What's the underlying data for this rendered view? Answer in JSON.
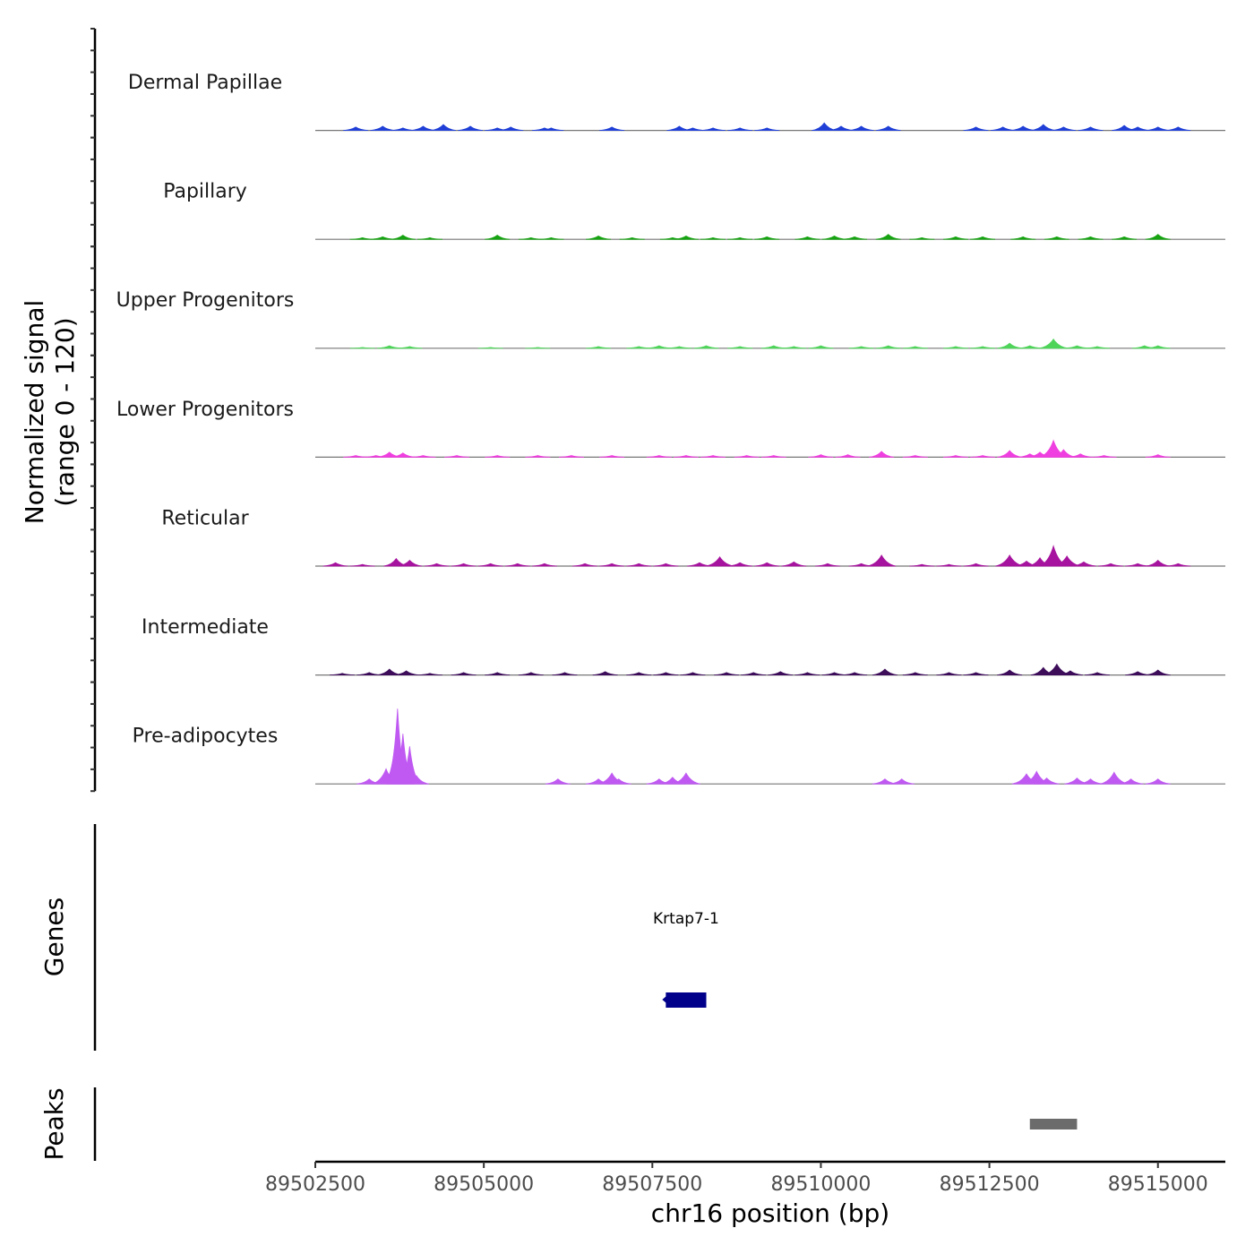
{
  "chart_data": {
    "type": "area",
    "chromosome": "chr16",
    "xlabel": "chr16 position (bp)",
    "xlim": [
      89502500,
      89516000
    ],
    "x_ticks": [
      89502500,
      89505000,
      89507500,
      89510000,
      89512500,
      89515000
    ],
    "x_tick_labels": [
      "89502500",
      "89505000",
      "89507500",
      "89510000",
      "89512500",
      "89515000"
    ],
    "signal_ylabel": "Normalized signal\n(range 0 - 120)",
    "signal_ylabel_lines": [
      "Normalized signal",
      "(range 0 - 120)"
    ],
    "ylim": [
      0,
      120
    ],
    "tracks": [
      {
        "name": "Dermal Papillae",
        "color": "#1f3fd6",
        "peaks": [
          [
            89503100,
            4
          ],
          [
            89503500,
            5
          ],
          [
            89503800,
            3
          ],
          [
            89504100,
            5
          ],
          [
            89504400,
            7
          ],
          [
            89504800,
            5
          ],
          [
            89505200,
            3
          ],
          [
            89505400,
            4
          ],
          [
            89505900,
            3
          ],
          [
            89506000,
            3
          ],
          [
            89506900,
            4
          ],
          [
            89507900,
            5
          ],
          [
            89508100,
            3
          ],
          [
            89508400,
            3
          ],
          [
            89508800,
            3
          ],
          [
            89509200,
            3
          ],
          [
            89510050,
            9
          ],
          [
            89510300,
            5
          ],
          [
            89510600,
            5
          ],
          [
            89511000,
            5
          ],
          [
            89512300,
            4
          ],
          [
            89512700,
            4
          ],
          [
            89513000,
            5
          ],
          [
            89513300,
            7
          ],
          [
            89513600,
            4
          ],
          [
            89514000,
            4
          ],
          [
            89514500,
            6
          ],
          [
            89514700,
            4
          ],
          [
            89515000,
            4
          ],
          [
            89515300,
            4
          ]
        ]
      },
      {
        "name": "Papillary",
        "color": "#17a312",
        "peaks": [
          [
            89503200,
            2
          ],
          [
            89503500,
            3
          ],
          [
            89503800,
            5
          ],
          [
            89504200,
            2
          ],
          [
            89505200,
            5
          ],
          [
            89505700,
            2
          ],
          [
            89506000,
            2
          ],
          [
            89506700,
            4
          ],
          [
            89507200,
            2
          ],
          [
            89507800,
            2
          ],
          [
            89508000,
            4
          ],
          [
            89508400,
            2
          ],
          [
            89508800,
            2
          ],
          [
            89509200,
            3
          ],
          [
            89509800,
            3
          ],
          [
            89510200,
            4
          ],
          [
            89510500,
            3
          ],
          [
            89511000,
            6
          ],
          [
            89511500,
            2
          ],
          [
            89512000,
            3
          ],
          [
            89512400,
            3
          ],
          [
            89513000,
            3
          ],
          [
            89513500,
            3
          ],
          [
            89514000,
            3
          ],
          [
            89514500,
            3
          ],
          [
            89515000,
            6
          ]
        ]
      },
      {
        "name": "Upper Progenitors",
        "color": "#4fd45a",
        "peaks": [
          [
            89503200,
            1
          ],
          [
            89503600,
            3
          ],
          [
            89503900,
            2
          ],
          [
            89505100,
            1
          ],
          [
            89505800,
            1
          ],
          [
            89506700,
            2
          ],
          [
            89507300,
            2
          ],
          [
            89507600,
            3
          ],
          [
            89507900,
            2
          ],
          [
            89508300,
            3
          ],
          [
            89508800,
            2
          ],
          [
            89509300,
            3
          ],
          [
            89509600,
            2
          ],
          [
            89510000,
            3
          ],
          [
            89510600,
            2
          ],
          [
            89511000,
            3
          ],
          [
            89511400,
            2
          ],
          [
            89512000,
            2
          ],
          [
            89512400,
            2
          ],
          [
            89512800,
            6
          ],
          [
            89513100,
            3
          ],
          [
            89513450,
            11
          ],
          [
            89513800,
            3
          ],
          [
            89514100,
            2
          ],
          [
            89514800,
            3
          ],
          [
            89515000,
            3
          ]
        ]
      },
      {
        "name": "Lower Progenitors",
        "color": "#f03fe0",
        "peaks": [
          [
            89503100,
            2
          ],
          [
            89503400,
            2
          ],
          [
            89503600,
            6
          ],
          [
            89503800,
            5
          ],
          [
            89504100,
            2
          ],
          [
            89504600,
            2
          ],
          [
            89505200,
            2
          ],
          [
            89505800,
            2
          ],
          [
            89506300,
            2
          ],
          [
            89506900,
            2
          ],
          [
            89507600,
            2
          ],
          [
            89508000,
            2
          ],
          [
            89508400,
            2
          ],
          [
            89508900,
            2
          ],
          [
            89509300,
            2
          ],
          [
            89510000,
            3
          ],
          [
            89510400,
            3
          ],
          [
            89510900,
            7
          ],
          [
            89511400,
            2
          ],
          [
            89512000,
            2
          ],
          [
            89512400,
            2
          ],
          [
            89512800,
            8
          ],
          [
            89513100,
            4
          ],
          [
            89513250,
            6
          ],
          [
            89513450,
            20
          ],
          [
            89513600,
            9
          ],
          [
            89513850,
            4
          ],
          [
            89514200,
            2
          ],
          [
            89515000,
            3
          ]
        ]
      },
      {
        "name": "Reticular",
        "color": "#a6139e",
        "peaks": [
          [
            89502800,
            4
          ],
          [
            89503200,
            2
          ],
          [
            89503700,
            9
          ],
          [
            89503900,
            7
          ],
          [
            89504300,
            3
          ],
          [
            89504700,
            3
          ],
          [
            89505100,
            3
          ],
          [
            89505500,
            3
          ],
          [
            89505900,
            3
          ],
          [
            89506500,
            3
          ],
          [
            89506900,
            3
          ],
          [
            89507300,
            3
          ],
          [
            89507700,
            3
          ],
          [
            89508200,
            4
          ],
          [
            89508500,
            11
          ],
          [
            89508800,
            4
          ],
          [
            89509200,
            4
          ],
          [
            89509600,
            5
          ],
          [
            89510100,
            3
          ],
          [
            89510600,
            3
          ],
          [
            89510900,
            13
          ],
          [
            89511500,
            2
          ],
          [
            89511900,
            2
          ],
          [
            89512300,
            3
          ],
          [
            89512800,
            13
          ],
          [
            89513050,
            6
          ],
          [
            89513250,
            10
          ],
          [
            89513450,
            24
          ],
          [
            89513650,
            12
          ],
          [
            89513900,
            5
          ],
          [
            89514300,
            3
          ],
          [
            89514700,
            3
          ],
          [
            89515000,
            7
          ],
          [
            89515300,
            3
          ]
        ]
      },
      {
        "name": "Intermediate",
        "color": "#3d0d5a",
        "peaks": [
          [
            89502900,
            2
          ],
          [
            89503300,
            3
          ],
          [
            89503600,
            7
          ],
          [
            89503850,
            5
          ],
          [
            89504200,
            2
          ],
          [
            89504700,
            3
          ],
          [
            89505200,
            3
          ],
          [
            89505700,
            3
          ],
          [
            89506200,
            3
          ],
          [
            89506800,
            4
          ],
          [
            89507300,
            3
          ],
          [
            89507700,
            3
          ],
          [
            89508100,
            3
          ],
          [
            89508600,
            3
          ],
          [
            89509000,
            3
          ],
          [
            89509400,
            4
          ],
          [
            89509800,
            3
          ],
          [
            89510200,
            3
          ],
          [
            89510500,
            3
          ],
          [
            89510950,
            7
          ],
          [
            89511400,
            3
          ],
          [
            89511900,
            3
          ],
          [
            89512300,
            3
          ],
          [
            89512800,
            6
          ],
          [
            89513300,
            9
          ],
          [
            89513500,
            13
          ],
          [
            89513700,
            5
          ],
          [
            89514100,
            3
          ],
          [
            89514700,
            4
          ],
          [
            89515000,
            6
          ]
        ]
      },
      {
        "name": "Pre-adipocytes",
        "color": "#bf59f2",
        "peaks": [
          [
            89503300,
            6
          ],
          [
            89503550,
            18
          ],
          [
            89503680,
            45
          ],
          [
            89503720,
            90
          ],
          [
            89503800,
            60
          ],
          [
            89503900,
            45
          ],
          [
            89504000,
            10
          ],
          [
            89506100,
            6
          ],
          [
            89506700,
            6
          ],
          [
            89506900,
            13
          ],
          [
            89507000,
            6
          ],
          [
            89507600,
            6
          ],
          [
            89507800,
            8
          ],
          [
            89508000,
            13
          ],
          [
            89510950,
            6
          ],
          [
            89511200,
            6
          ],
          [
            89513050,
            12
          ],
          [
            89513200,
            15
          ],
          [
            89513350,
            7
          ],
          [
            89513800,
            7
          ],
          [
            89514000,
            6
          ],
          [
            89514350,
            14
          ],
          [
            89514600,
            6
          ],
          [
            89515000,
            6
          ]
        ]
      }
    ],
    "genes_label": "Genes",
    "genes": [
      {
        "name": "Krtap7-1",
        "start": 89507700,
        "end": 89508300,
        "color": "#00008b"
      }
    ],
    "peaks_label": "Peaks",
    "peak_regions": [
      {
        "start": 89513100,
        "end": 89513800,
        "color": "#6b6b6b"
      }
    ]
  }
}
